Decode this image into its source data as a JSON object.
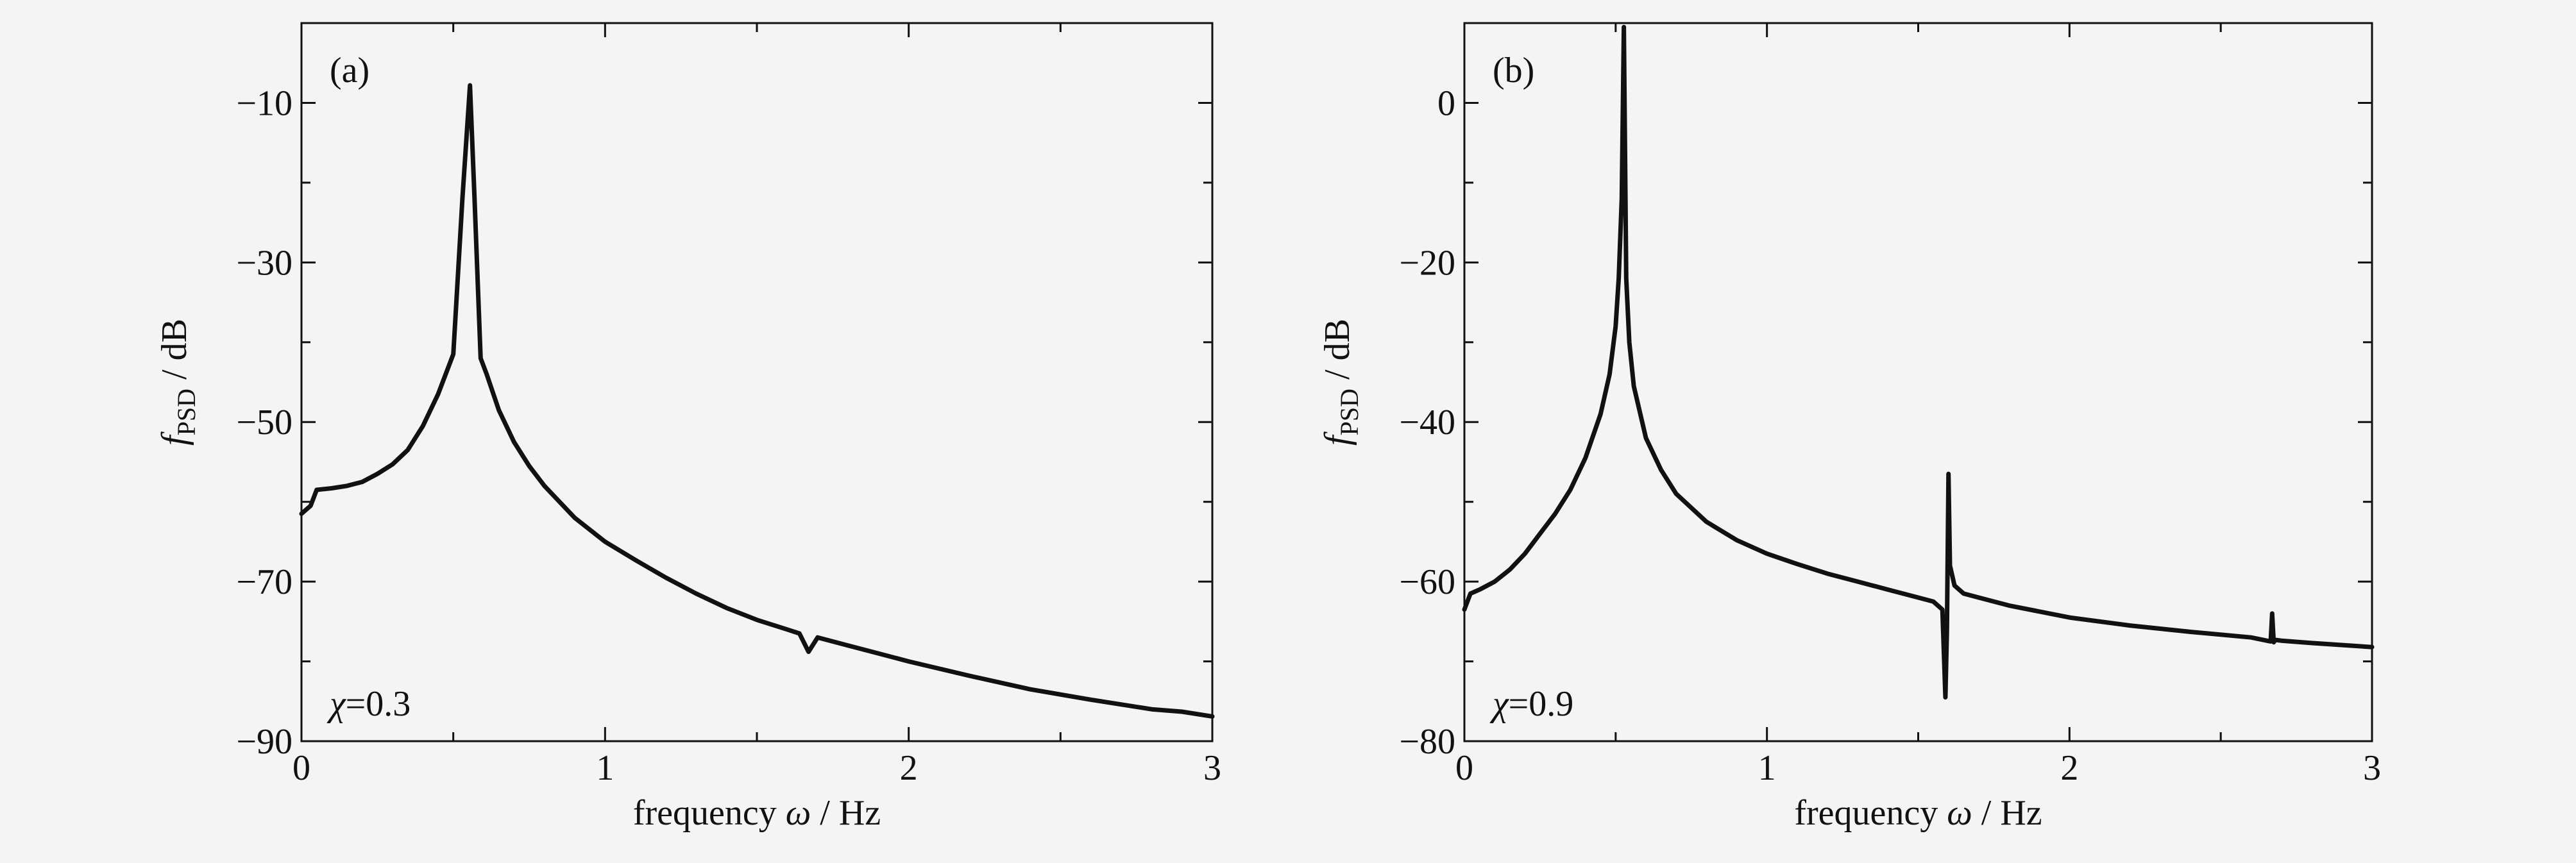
{
  "colors": {
    "background": "#f4f4f4",
    "line": "#111111",
    "frame": "#111111"
  },
  "chart_data": [
    {
      "type": "line",
      "panel_label": "(a)",
      "annotation": {
        "symbol": "χ",
        "text": "=0.3"
      },
      "xlabel": {
        "prefix": "frequency ",
        "symbol": "ω",
        "suffix": " / Hz"
      },
      "ylabel": {
        "symbol": "f",
        "subscript": "PSD",
        "suffix": " / dB"
      },
      "xlim": [
        0,
        3
      ],
      "ylim": [
        -90,
        0
      ],
      "xticks": [
        0,
        1,
        2,
        3
      ],
      "xtick_labels": [
        "0",
        "1",
        "2",
        "3"
      ],
      "yticks": [
        -10,
        -30,
        -50,
        -70,
        -90
      ],
      "ytick_labels": [
        "−10",
        "−30",
        "−50",
        "−70",
        "−90"
      ],
      "minor_yticks": [
        -20,
        -40,
        -60,
        -80
      ],
      "minor_xticks": [
        0.5,
        1.5,
        2.5
      ],
      "grid": false,
      "series": [
        {
          "x": [
            0,
            0.03,
            0.05,
            0.1,
            0.15,
            0.2,
            0.25,
            0.3,
            0.35,
            0.4,
            0.45,
            0.5,
            0.53,
            0.555,
            0.57,
            0.59,
            0.61,
            0.65,
            0.7,
            0.75,
            0.8,
            0.9,
            1.0,
            1.1,
            1.2,
            1.3,
            1.4,
            1.5,
            1.6,
            1.64,
            1.67,
            1.7,
            1.8,
            2.0,
            2.2,
            2.4,
            2.6,
            2.8,
            2.9,
            3.0
          ],
          "y": [
            -61.5,
            -60.5,
            -58.5,
            -58.3,
            -58.0,
            -57.5,
            -56.5,
            -55.3,
            -53.5,
            -50.5,
            -46.5,
            -41.5,
            -22,
            -7.8,
            -22,
            -42,
            -44,
            -48.5,
            -52.5,
            -55.5,
            -58.0,
            -62.0,
            -65.0,
            -67.3,
            -69.5,
            -71.5,
            -73.3,
            -74.8,
            -76.0,
            -76.5,
            -78.8,
            -77.0,
            -78.0,
            -80.0,
            -81.8,
            -83.5,
            -84.8,
            -86.0,
            -86.3,
            -86.9
          ]
        }
      ]
    },
    {
      "type": "line",
      "panel_label": "(b)",
      "annotation": {
        "symbol": "χ",
        "text": "=0.9"
      },
      "xlabel": {
        "prefix": "frequency ",
        "symbol": "ω",
        "suffix": " / Hz"
      },
      "ylabel": {
        "symbol": "f",
        "subscript": "PSD",
        "suffix": " / dB"
      },
      "xlim": [
        0,
        3
      ],
      "ylim": [
        -80,
        10
      ],
      "xticks": [
        0,
        1,
        2,
        3
      ],
      "xtick_labels": [
        "0",
        "1",
        "2",
        "3"
      ],
      "yticks": [
        0,
        -20,
        -40,
        -60,
        -80
      ],
      "ytick_labels": [
        "0",
        "−20",
        "−40",
        "−60",
        "−80"
      ],
      "minor_yticks": [
        -10,
        -30,
        -50,
        -70
      ],
      "minor_xticks": [
        0.5,
        1.5,
        2.5
      ],
      "grid": false,
      "series": [
        {
          "x": [
            0,
            0.02,
            0.05,
            0.1,
            0.15,
            0.2,
            0.25,
            0.3,
            0.35,
            0.4,
            0.45,
            0.48,
            0.5,
            0.51,
            0.52,
            0.527,
            0.535,
            0.545,
            0.56,
            0.6,
            0.65,
            0.7,
            0.8,
            0.9,
            1.0,
            1.1,
            1.2,
            1.3,
            1.4,
            1.5,
            1.55,
            1.58,
            1.59,
            1.595,
            1.6,
            1.605,
            1.62,
            1.65,
            1.7,
            1.8,
            2.0,
            2.2,
            2.4,
            2.6,
            2.665,
            2.67,
            2.675,
            2.68,
            2.7,
            2.8,
            3.0
          ],
          "y": [
            -63.5,
            -61.5,
            -61.0,
            -60.0,
            -58.5,
            -56.5,
            -54.0,
            -51.5,
            -48.5,
            -44.5,
            -39.0,
            -34.0,
            -28.0,
            -22.0,
            -12.0,
            9.5,
            -22.0,
            -30.0,
            -35.5,
            -42.0,
            -46.0,
            -49.0,
            -52.5,
            -54.8,
            -56.5,
            -57.8,
            -59.0,
            -60.0,
            -61.0,
            -62.0,
            -62.5,
            -63.5,
            -74.5,
            -66.0,
            -46.5,
            -58.0,
            -60.5,
            -61.5,
            -62.0,
            -63.0,
            -64.5,
            -65.5,
            -66.3,
            -67.0,
            -67.5,
            -64.0,
            -67.6,
            -67.3,
            -67.4,
            -67.7,
            -68.2
          ]
        }
      ]
    }
  ]
}
